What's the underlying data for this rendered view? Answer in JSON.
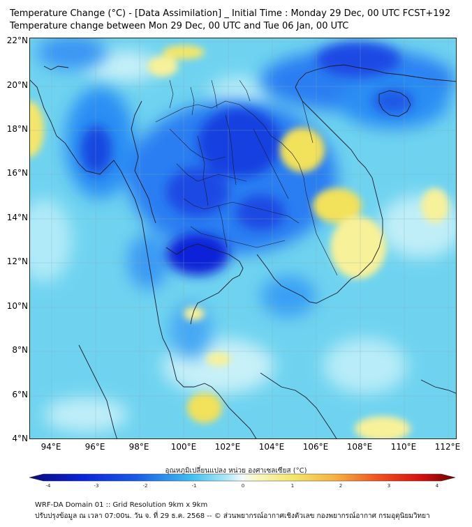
{
  "title": {
    "line1": "Temperature Change (°C) - [Data Assimilation] _ Initial Time : Monday 29 Dec, 00 UTC FCST+192",
    "line2": "Temperature change between Mon 29 Dec, 00 UTC and Tue 06 Jan, 00 UTC"
  },
  "axes": {
    "lat_labels": [
      "22°N",
      "20°N",
      "18°N",
      "16°N",
      "14°N",
      "12°N",
      "10°N",
      "8°N",
      "6°N",
      "4°N"
    ],
    "lon_labels": [
      "94°E",
      "96°E",
      "98°E",
      "100°E",
      "102°E",
      "104°E",
      "106°E",
      "108°E",
      "110°E",
      "112°E"
    ],
    "lat_range": [
      4,
      22.2
    ],
    "lon_range": [
      93,
      112.5
    ]
  },
  "colorbar": {
    "title": "อุณหภูมิเปลี่ยนแปลง หน่วย องศาเซลเซียส (°C)",
    "ticks": [
      "-4",
      "-3",
      "-2",
      "-1",
      "0",
      "1",
      "2",
      "3",
      "4"
    ],
    "range": [
      -4,
      4
    ]
  },
  "colors": {
    "background_field": "#6fd3f0",
    "cooling_strong": "#0a1fd6",
    "cooling_moderate": "#2a6ef0",
    "warming_light": "#f7f19a",
    "warming_moderate": "#f2e15a"
  },
  "footer": {
    "line1": "WRF-DA Domain 01 :: Grid Resolution 9km x 9km",
    "line2": "ปรับปรุงข้อมูล ณ เวลา 07:00น. วัน จ. ที่ 29 ธ.ค. 2568 -- © ส่วนพยากรณ์อากาศเชิงตัวเลข กองพยากรณ์อากาศ กรมอุตุนิยมวิทยา"
  }
}
